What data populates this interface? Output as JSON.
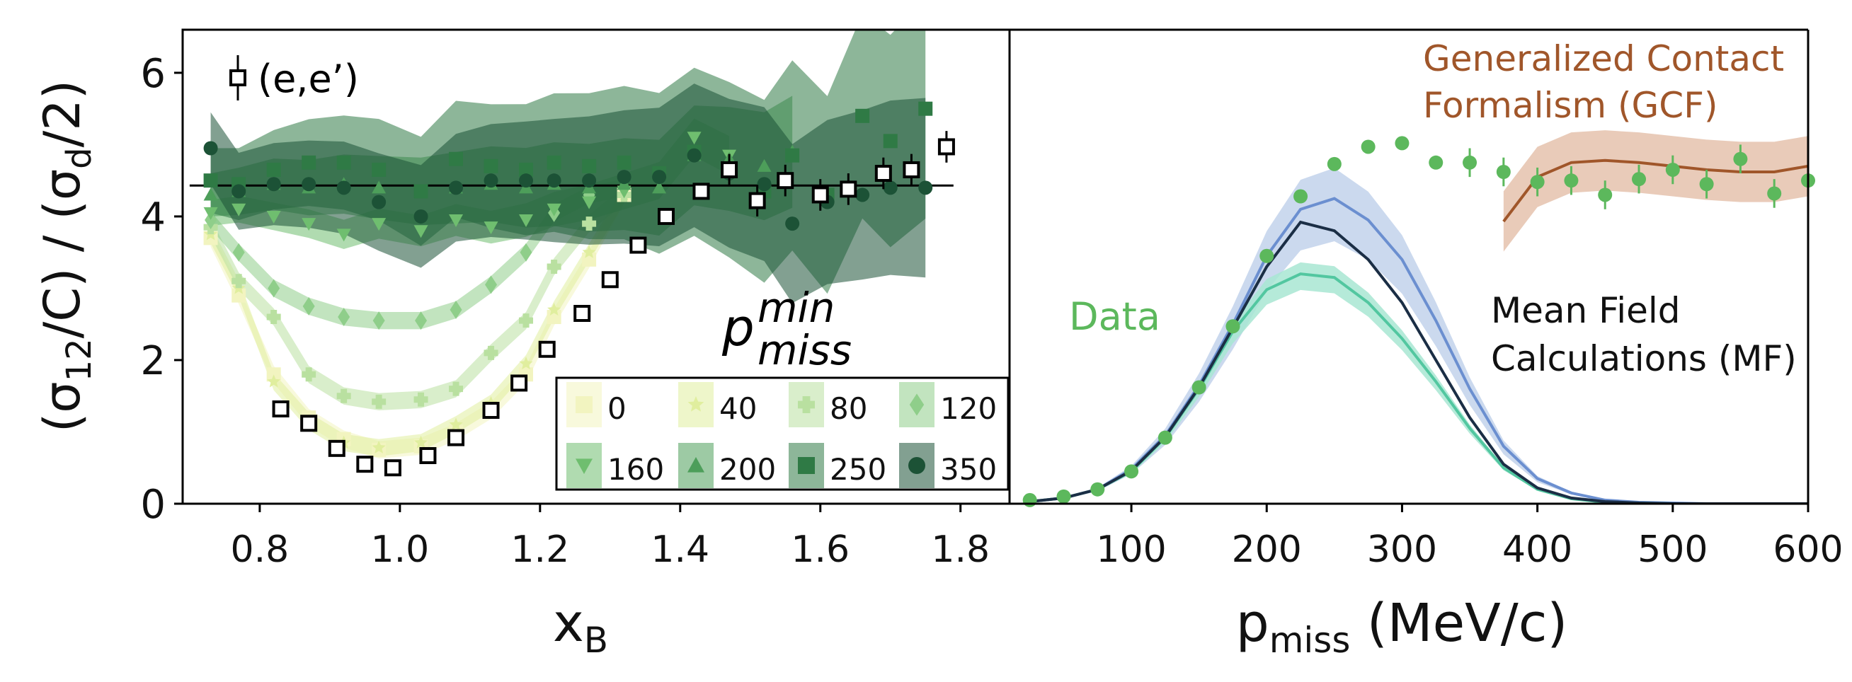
{
  "ylabel": {
    "a": "(σ",
    "b": "12",
    "c": "/C) / (σ",
    "d": "d",
    "e": "/2)"
  },
  "left_legend_label": "(e,e’)",
  "pmin_label": {
    "base": "p",
    "sup": "min",
    "sub": "miss"
  },
  "xlabel_left": {
    "base": "x",
    "sub": "B"
  },
  "xlabel_right": {
    "base": "p",
    "sub": "miss",
    "unit": " (MeV/c)"
  },
  "annot_gcf": [
    "Generalized Contact",
    "Formalism (GCF)"
  ],
  "annot_mf": [
    "Mean Field",
    "Calculations (MF)"
  ],
  "annot_data": "Data",
  "colors": {
    "pmin": [
      "#f2f4c0",
      "#e0ee9e",
      "#b9e0a0",
      "#8fce8a",
      "#6fbe6f",
      "#4d9e5a",
      "#2f7a45",
      "#1c5236"
    ],
    "data": "#5cb85c",
    "gcf": "#a0562a",
    "gcf_band": "#dba98a",
    "mf_upper": "#6b8fd0",
    "mf_upper_band": "#b9cce8",
    "mf_mid": "#1b2e45",
    "mf_lower": "#52c7a0",
    "mf_lower_band": "#a8e6d2",
    "ee": "#000000",
    "hline": "#000000"
  },
  "chart_data": [
    {
      "type": "scatter",
      "panel": "left",
      "xlabel": "xB",
      "ylabel": "(σ12/C) / (σd/2)",
      "xlim": [
        0.69,
        1.87
      ],
      "ylim": [
        0,
        6.6
      ],
      "xticks": [
        "0.8",
        "1.0",
        "1.2",
        "1.4",
        "1.6",
        "1.8"
      ],
      "yticks": [
        "0",
        "2",
        "4",
        "6"
      ],
      "reference_line": 4.43,
      "legend_title": "p_miss^min",
      "legend_placement": "lower-right",
      "x": [
        0.73,
        0.77,
        0.82,
        0.87,
        0.92,
        0.97,
        1.03,
        1.08,
        1.13,
        1.18,
        1.22,
        1.27,
        1.32,
        1.37,
        1.42,
        1.47,
        1.52,
        1.56,
        1.61,
        1.66,
        1.7,
        1.75
      ],
      "series": [
        {
          "name": "0",
          "marker": "square",
          "values": [
            3.7,
            2.9,
            1.8,
            1.2,
            0.9,
            0.75,
            0.8,
            1.0,
            1.3,
            1.8,
            2.6,
            3.4,
            4.3
          ]
        },
        {
          "name": "40",
          "marker": "star",
          "values": [
            3.75,
            3.0,
            1.7,
            1.15,
            0.85,
            0.78,
            0.85,
            1.1,
            1.4,
            1.95,
            2.7,
            3.5,
            4.3
          ]
        },
        {
          "name": "80",
          "marker": "plus",
          "values": [
            3.85,
            3.1,
            2.6,
            1.8,
            1.5,
            1.42,
            1.45,
            1.6,
            2.1,
            2.55,
            3.3,
            3.9,
            4.3
          ]
        },
        {
          "name": "120",
          "marker": "diamond",
          "values": [
            3.95,
            3.5,
            3.0,
            2.75,
            2.6,
            2.55,
            2.55,
            2.7,
            3.05,
            3.5,
            4.05,
            4.3,
            4.4
          ]
        },
        {
          "name": "160",
          "marker": "triangle-down",
          "values": [
            4.05,
            4.1,
            4.0,
            3.9,
            3.75,
            3.9,
            3.8,
            3.95,
            3.85,
            3.95,
            4.1,
            4.2,
            4.35,
            4.5,
            5.1,
            4.85
          ]
        },
        {
          "name": "200",
          "marker": "triangle-up",
          "values": [
            4.3,
            4.35,
            4.45,
            4.4,
            4.45,
            4.4,
            4.35,
            4.4,
            4.45,
            4.4,
            4.45,
            4.4,
            4.45,
            4.4,
            4.85,
            4.8,
            4.7,
            4.9
          ]
        },
        {
          "name": "250",
          "marker": "square",
          "values": [
            4.5,
            4.45,
            4.65,
            4.75,
            4.75,
            4.65,
            4.35,
            4.8,
            4.7,
            4.65,
            4.75,
            4.7,
            4.75,
            4.6,
            4.9,
            4.65,
            4.35,
            4.85,
            4.3,
            5.4,
            5.05,
            5.5
          ]
        },
        {
          "name": "350",
          "marker": "circle",
          "values": [
            4.95,
            4.35,
            4.45,
            4.45,
            4.4,
            4.2,
            4.0,
            4.4,
            4.5,
            4.5,
            4.5,
            4.5,
            4.55,
            4.55,
            4.85,
            4.6,
            4.45,
            3.9,
            4.2,
            4.3,
            4.4,
            4.4
          ]
        },
        {
          "name": "(e,e’)",
          "marker": "open-square",
          "x": [
            0.83,
            0.87,
            0.91,
            0.95,
            0.99,
            1.04,
            1.08,
            1.13,
            1.17,
            1.21,
            1.26,
            1.3,
            1.34,
            1.38,
            1.43,
            1.47,
            1.51,
            1.55,
            1.6,
            1.64,
            1.69,
            1.73,
            1.78
          ],
          "values": [
            1.32,
            1.12,
            0.77,
            0.55,
            0.5,
            0.67,
            0.92,
            1.3,
            1.68,
            2.15,
            2.65,
            3.12,
            3.6,
            4.0,
            4.35,
            4.65,
            4.22,
            4.5,
            4.3,
            4.38,
            4.6,
            4.65,
            4.97
          ]
        }
      ]
    },
    {
      "type": "line",
      "panel": "right",
      "xlabel": "pmiss (MeV/c)",
      "xlim": [
        10,
        600
      ],
      "ylim": [
        0,
        6.6
      ],
      "xticks": [
        "100",
        "200",
        "300",
        "400",
        "500",
        "600"
      ],
      "series": [
        {
          "name": "Data",
          "marker": "circle",
          "x": [
            25,
            50,
            75,
            100,
            125,
            150,
            175,
            200,
            225,
            250,
            275,
            300,
            325,
            350,
            375,
            400,
            425,
            450,
            475,
            500,
            525,
            550,
            575,
            600
          ],
          "values": [
            0.05,
            0.1,
            0.2,
            0.45,
            0.92,
            1.62,
            2.47,
            3.45,
            4.28,
            4.73,
            4.97,
            5.02,
            4.75,
            4.75,
            4.62,
            4.48,
            4.5,
            4.3,
            4.52,
            4.65,
            4.45,
            4.8,
            4.32,
            4.5
          ]
        },
        {
          "name": "Generalized Contact Formalism (GCF)",
          "x": [
            375,
            400,
            425,
            450,
            475,
            500,
            525,
            550,
            575,
            600
          ],
          "values": [
            3.93,
            4.55,
            4.75,
            4.78,
            4.75,
            4.7,
            4.65,
            4.62,
            4.62,
            4.7
          ]
        },
        {
          "name": "MF upper",
          "x": [
            25,
            50,
            75,
            100,
            125,
            150,
            175,
            200,
            225,
            250,
            275,
            300,
            325,
            350,
            375,
            400,
            425,
            450,
            475,
            500,
            525,
            550,
            575,
            600
          ],
          "values": [
            0.03,
            0.08,
            0.2,
            0.48,
            0.95,
            1.65,
            2.5,
            3.45,
            4.1,
            4.25,
            3.95,
            3.4,
            2.55,
            1.6,
            0.8,
            0.35,
            0.15,
            0.05,
            0.02,
            0.01,
            0.0,
            0.0,
            0.0,
            0.0
          ]
        },
        {
          "name": "MF mid",
          "x": [
            25,
            50,
            75,
            100,
            125,
            150,
            175,
            200,
            225,
            250,
            275,
            300,
            325,
            350,
            375,
            400,
            425,
            450,
            475,
            500,
            525,
            550,
            575,
            600
          ],
          "values": [
            0.03,
            0.08,
            0.2,
            0.46,
            0.93,
            1.62,
            2.45,
            3.3,
            3.92,
            3.8,
            3.4,
            2.8,
            2.0,
            1.2,
            0.55,
            0.22,
            0.08,
            0.03,
            0.01,
            0.0,
            0.0,
            0.0,
            0.0,
            0.0
          ]
        },
        {
          "name": "MF lower",
          "x": [
            25,
            50,
            75,
            100,
            125,
            150,
            175,
            200,
            225,
            250,
            275,
            300,
            325,
            350,
            375,
            400,
            425,
            450,
            475,
            500,
            525,
            550,
            575,
            600
          ],
          "values": [
            0.03,
            0.08,
            0.2,
            0.45,
            0.92,
            1.6,
            2.4,
            2.98,
            3.2,
            3.15,
            2.8,
            2.3,
            1.7,
            1.05,
            0.5,
            0.2,
            0.07,
            0.02,
            0.01,
            0.0,
            0.0,
            0.0,
            0.0,
            0.0
          ]
        }
      ]
    }
  ]
}
